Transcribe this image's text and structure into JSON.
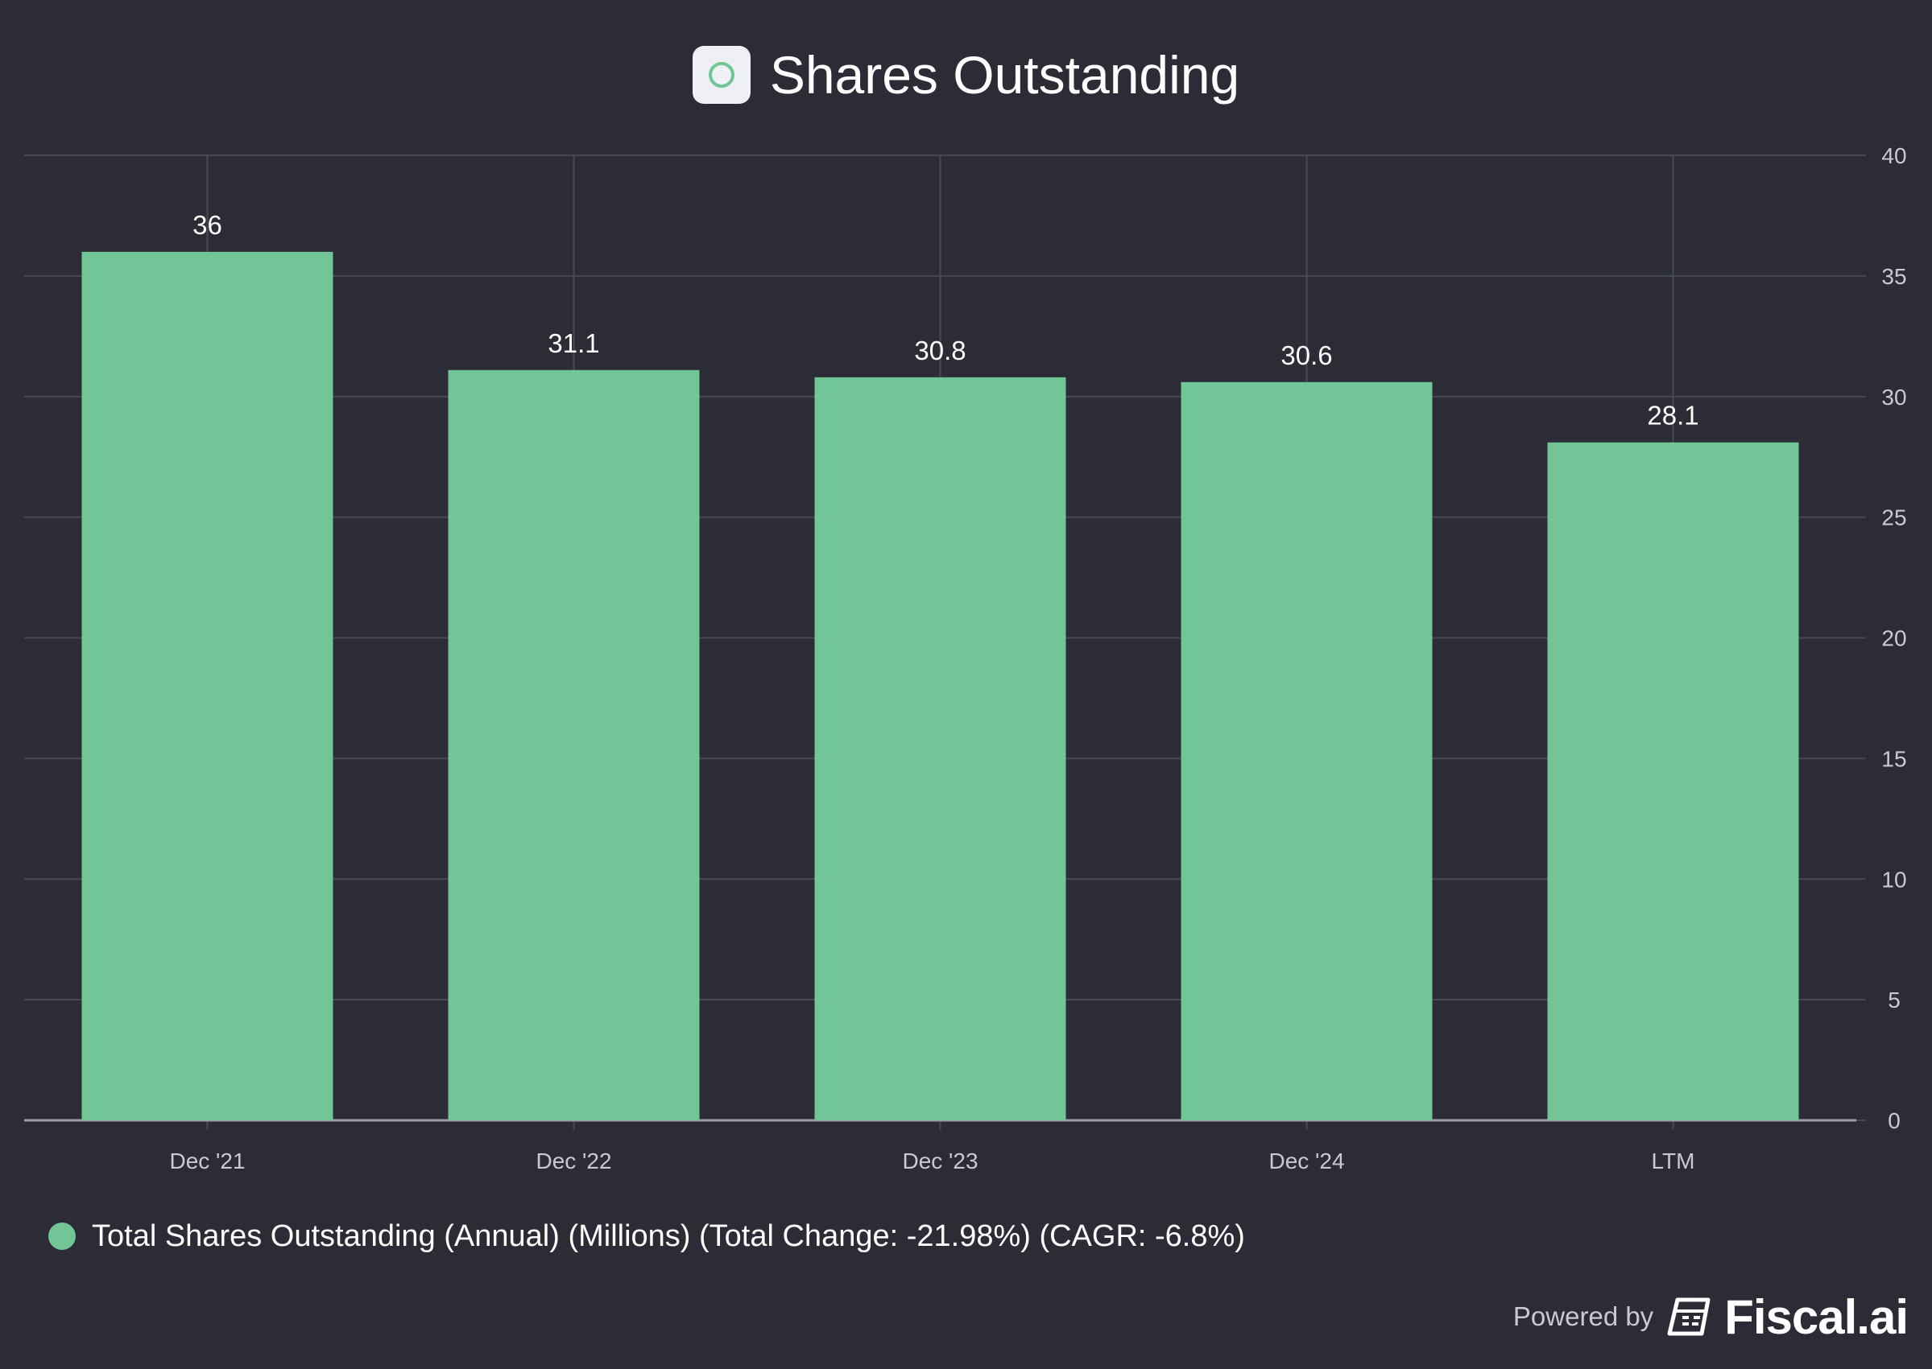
{
  "chart_data": {
    "type": "bar",
    "title": "Shares Outstanding",
    "categories": [
      "Dec '21",
      "Dec '22",
      "Dec '23",
      "Dec '24",
      "LTM"
    ],
    "values": [
      36,
      31.1,
      30.8,
      30.6,
      28.1
    ],
    "value_labels": [
      "36",
      "31.1",
      "30.8",
      "30.6",
      "28.1"
    ],
    "ylim": [
      0,
      40
    ],
    "yticks": [
      0,
      5,
      10,
      15,
      20,
      25,
      30,
      35,
      40
    ],
    "y_axis_side": "right",
    "grid": true,
    "xlabel": "",
    "ylabel": "",
    "series_name": "Total Shares Outstanding (Annual) (Millions) (Total Change: -21.98%) (CAGR: -6.8%)",
    "legend_placement": "bottom-left"
  },
  "colors": {
    "background": "#2b2c35",
    "bar": "#72c597",
    "grid": "#464852",
    "axis_text": "#c9cad1"
  },
  "icons": {
    "title_logo": "circle-logo-icon",
    "brand_logo": "fiscal-logo-icon"
  },
  "footer": {
    "powered_by": "Powered by",
    "brand": "Fiscal.ai"
  }
}
